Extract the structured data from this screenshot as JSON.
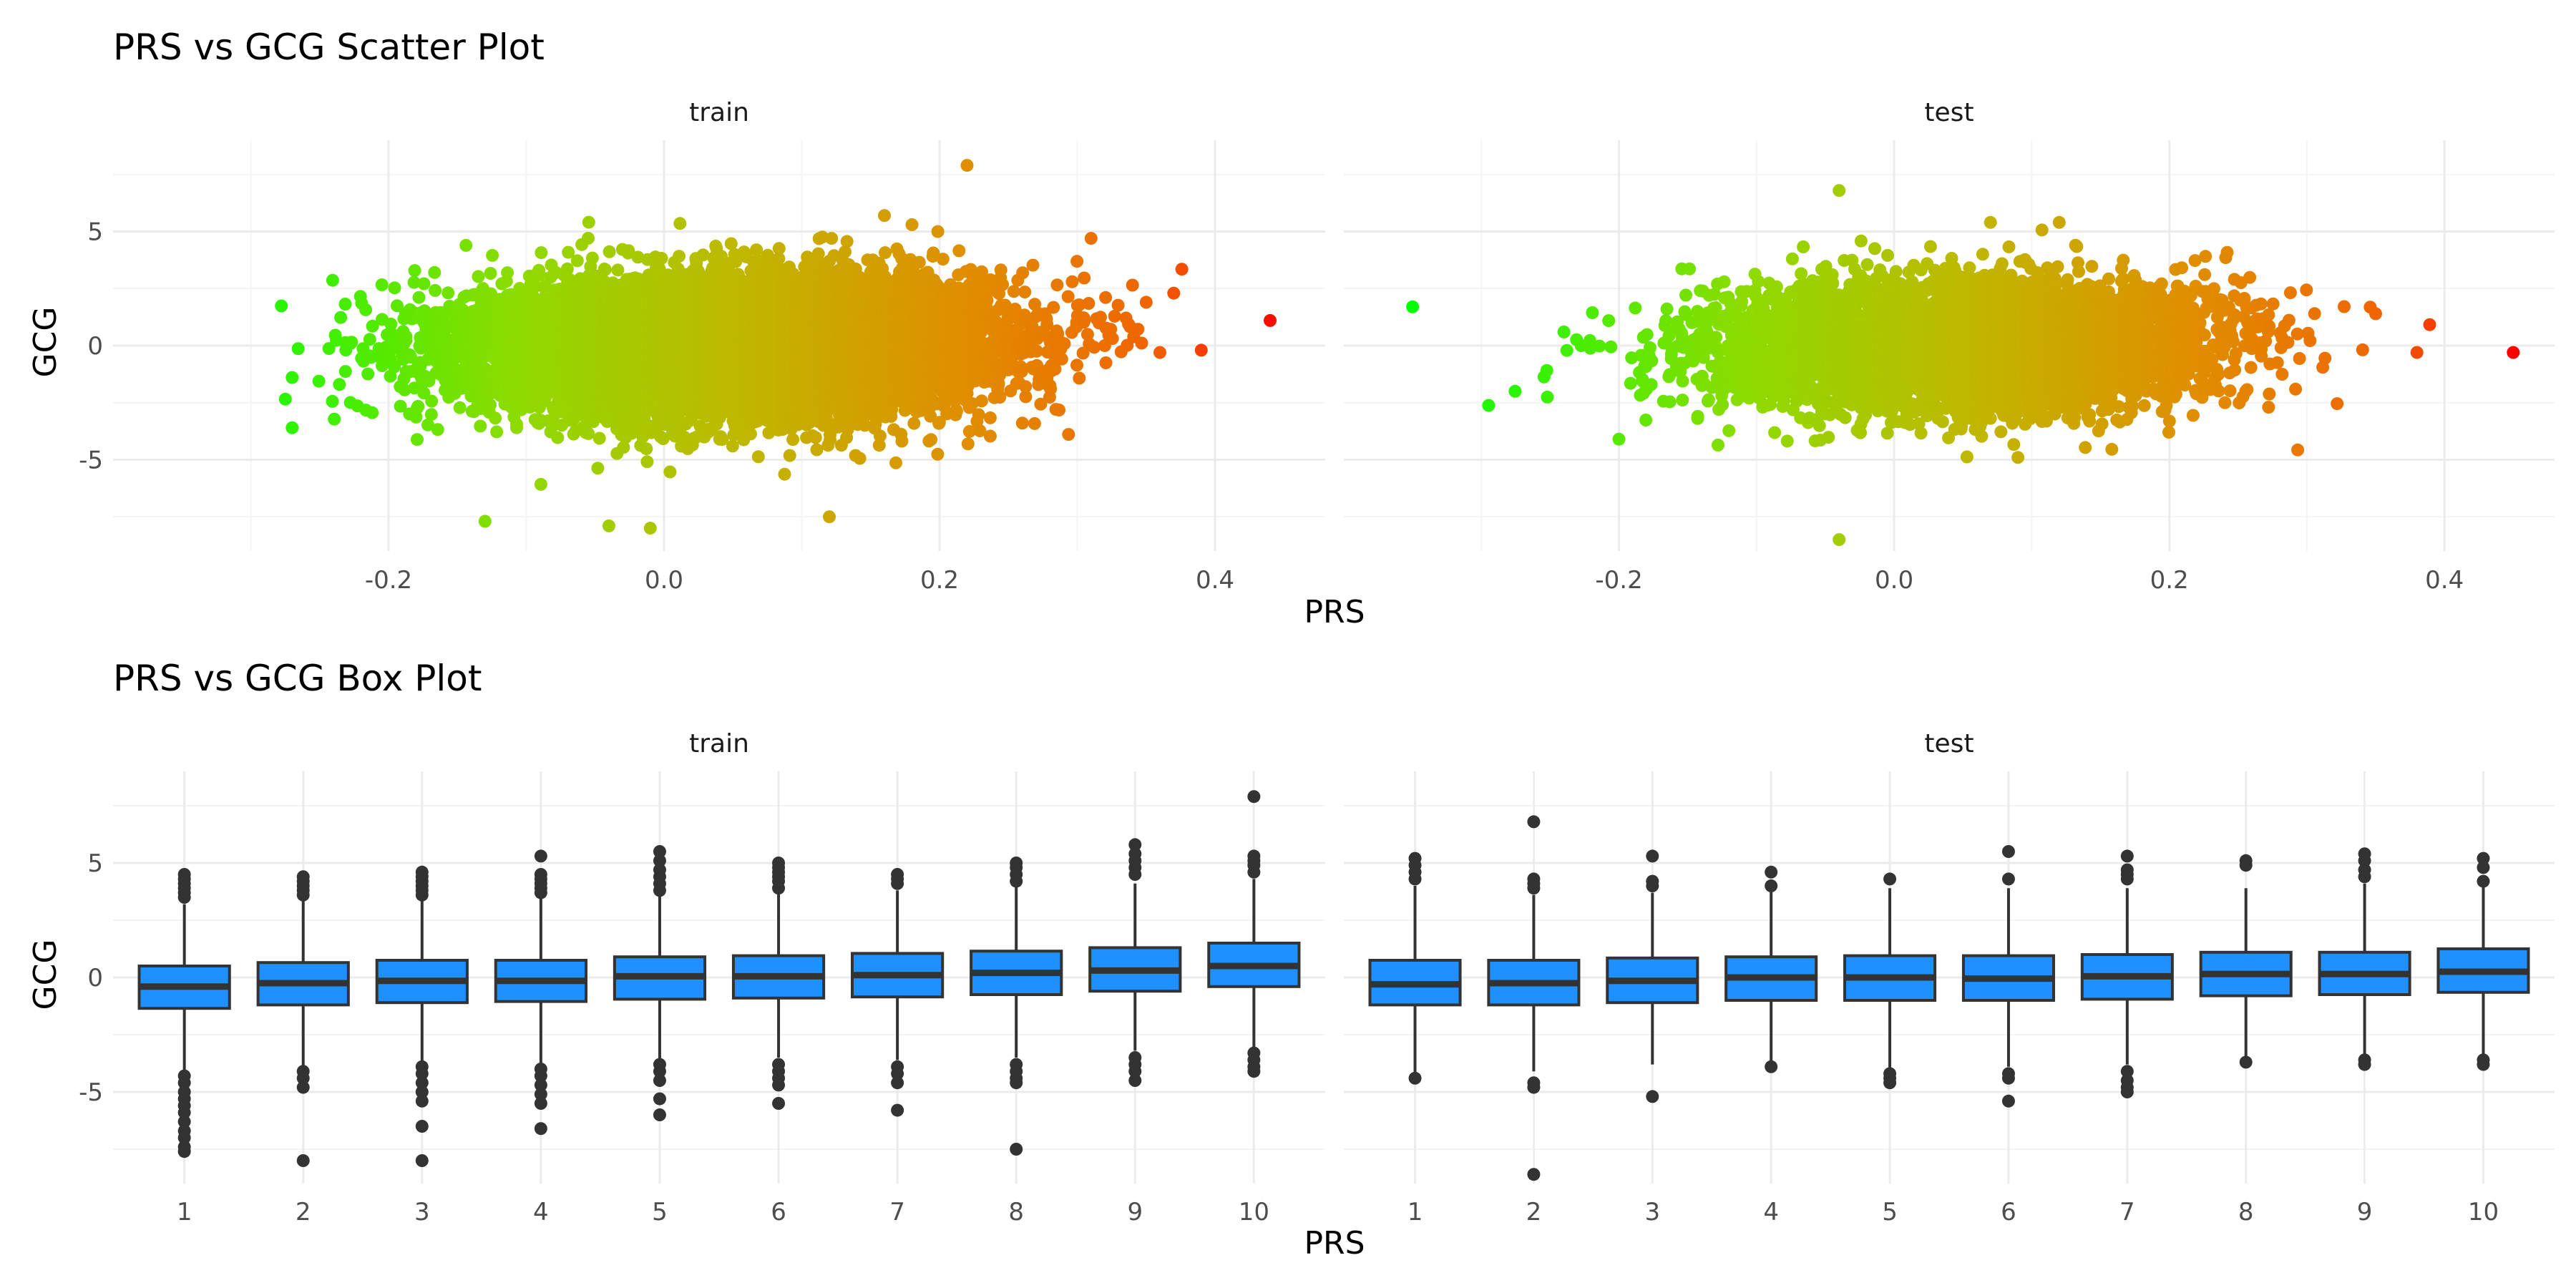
{
  "chart_data": [
    {
      "type": "scatter",
      "title": "PRS vs GCG Scatter Plot",
      "xlabel": "PRS",
      "ylabel": "GCG",
      "panels": [
        "train",
        "test"
      ],
      "xlim": [
        -0.4,
        0.48
      ],
      "ylim": [
        -9,
        9
      ],
      "x_ticks": [
        -0.2,
        0.0,
        0.2,
        0.4
      ],
      "x_tick_labels": [
        "-0.2",
        "0.0",
        "0.2",
        "0.4"
      ],
      "y_ticks": [
        -5,
        0,
        5
      ],
      "y_tick_labels": [
        "-5",
        "0",
        "5"
      ],
      "color_scale": {
        "low": "#00ff00",
        "high": "#ff0000",
        "mapped_to": "PRS"
      },
      "legend": "none",
      "grid": true,
      "series": [
        {
          "panel": "train",
          "n_points_approx": 12000,
          "x_mean": 0.05,
          "x_sd": 0.09,
          "y_mean": 0.0,
          "y_sd": 1.5,
          "slope": 2.5,
          "notable_points": [
            {
              "x": 0.44,
              "y": 1.1
            },
            {
              "x": 0.22,
              "y": 7.9
            },
            {
              "x": -0.27,
              "y": -1.4
            },
            {
              "x": -0.27,
              "y": -3.6
            },
            {
              "x": -0.01,
              "y": -8.0
            },
            {
              "x": -0.04,
              "y": -7.9
            },
            {
              "x": -0.13,
              "y": -7.7
            },
            {
              "x": 0.12,
              "y": -7.5
            },
            {
              "x": 0.39,
              "y": -0.2
            },
            {
              "x": 0.37,
              "y": 2.3
            },
            {
              "x": 0.36,
              "y": -0.3
            },
            {
              "x": 0.35,
              "y": 1.9
            },
            {
              "x": 0.31,
              "y": 4.7
            },
            {
              "x": 0.16,
              "y": 5.7
            },
            {
              "x": 0.18,
              "y": 5.3
            }
          ]
        },
        {
          "panel": "test",
          "n_points_approx": 5000,
          "x_mean": 0.05,
          "x_sd": 0.09,
          "y_mean": 0.0,
          "y_sd": 1.5,
          "slope": 2.5,
          "notable_points": [
            {
              "x": -0.35,
              "y": 1.7
            },
            {
              "x": 0.45,
              "y": -0.3
            },
            {
              "x": 0.38,
              "y": -0.3
            },
            {
              "x": -0.04,
              "y": 6.8
            },
            {
              "x": -0.04,
              "y": -8.5
            },
            {
              "x": -0.2,
              "y": -4.1
            },
            {
              "x": -0.24,
              "y": 0.6
            },
            {
              "x": 0.35,
              "y": 1.4
            },
            {
              "x": 0.12,
              "y": 5.4
            },
            {
              "x": 0.07,
              "y": 5.4
            },
            {
              "x": 0.09,
              "y": -4.9
            }
          ]
        }
      ]
    },
    {
      "type": "box",
      "title": "PRS vs GCG Box Plot",
      "xlabel": "PRS",
      "ylabel": "GCG",
      "panels": [
        "train",
        "test"
      ],
      "categories": [
        "1",
        "2",
        "3",
        "4",
        "5",
        "6",
        "7",
        "8",
        "9",
        "10"
      ],
      "ylim": [
        -9,
        9
      ],
      "y_ticks": [
        -5,
        0,
        5
      ],
      "y_tick_labels": [
        "-5",
        "0",
        "5"
      ],
      "box_fill": "#1e90ff",
      "box_stroke": "#333333",
      "grid": true,
      "series": [
        {
          "panel": "train",
          "boxes": [
            {
              "q1": -1.35,
              "median": -0.4,
              "q3": 0.5,
              "whisker_low": -4.1,
              "whisker_high": 3.2,
              "outliers": [
                4.5,
                4.3,
                4.1,
                3.9,
                3.7,
                3.5,
                -4.3,
                -4.6,
                -5.0,
                -5.3,
                -5.6,
                -5.9,
                -6.3,
                -6.7,
                -7.0,
                -7.4,
                -7.6
              ]
            },
            {
              "q1": -1.2,
              "median": -0.25,
              "q3": 0.65,
              "whisker_low": -3.9,
              "whisker_high": 3.4,
              "outliers": [
                4.4,
                4.2,
                4.0,
                3.8,
                3.6,
                -4.1,
                -4.4,
                -4.8,
                -8.0
              ]
            },
            {
              "q1": -1.1,
              "median": -0.15,
              "q3": 0.75,
              "whisker_low": -3.7,
              "whisker_high": 3.5,
              "outliers": [
                4.6,
                4.4,
                4.2,
                4.0,
                3.8,
                3.6,
                -3.9,
                -4.2,
                -4.6,
                -5.0,
                -5.4,
                -6.5,
                -8.0
              ]
            },
            {
              "q1": -1.05,
              "median": -0.15,
              "q3": 0.75,
              "whisker_low": -3.8,
              "whisker_high": 3.5,
              "outliers": [
                5.3,
                4.5,
                4.3,
                4.1,
                3.9,
                3.7,
                -4.0,
                -4.3,
                -4.7,
                -5.1,
                -5.5,
                -6.6
              ]
            },
            {
              "q1": -0.95,
              "median": 0.05,
              "q3": 0.9,
              "whisker_low": -3.6,
              "whisker_high": 3.6,
              "outliers": [
                5.5,
                5.1,
                4.7,
                4.4,
                4.1,
                3.8,
                -3.8,
                -4.1,
                -4.5,
                -5.3,
                -6.0
              ]
            },
            {
              "q1": -0.9,
              "median": 0.05,
              "q3": 0.95,
              "whisker_low": -3.5,
              "whisker_high": 3.7,
              "outliers": [
                5.0,
                4.8,
                4.6,
                4.4,
                4.2,
                3.9,
                -3.8,
                -4.1,
                -4.4,
                -4.7,
                -5.5
              ]
            },
            {
              "q1": -0.85,
              "median": 0.1,
              "q3": 1.05,
              "whisker_low": -3.6,
              "whisker_high": 3.8,
              "outliers": [
                4.5,
                4.3,
                4.1,
                -3.9,
                -4.2,
                -4.6,
                -5.8
              ]
            },
            {
              "q1": -0.75,
              "median": 0.2,
              "q3": 1.15,
              "whisker_low": -3.5,
              "whisker_high": 4.0,
              "outliers": [
                5.0,
                4.8,
                4.5,
                4.2,
                -3.8,
                -4.1,
                -4.4,
                -4.6,
                -7.5
              ]
            },
            {
              "q1": -0.6,
              "median": 0.3,
              "q3": 1.3,
              "whisker_low": -3.2,
              "whisker_high": 4.1,
              "outliers": [
                5.8,
                5.4,
                5.1,
                4.8,
                4.5,
                -3.5,
                -3.8,
                -4.1,
                -4.5
              ]
            },
            {
              "q1": -0.4,
              "median": 0.5,
              "q3": 1.5,
              "whisker_low": -3.1,
              "whisker_high": 4.3,
              "outliers": [
                7.9,
                5.3,
                5.1,
                4.9,
                4.6,
                -3.3,
                -3.6,
                -3.9,
                -4.1
              ]
            }
          ]
        },
        {
          "panel": "test",
          "boxes": [
            {
              "q1": -1.2,
              "median": -0.3,
              "q3": 0.75,
              "whisker_low": -4.3,
              "whisker_high": 4.0,
              "outliers": [
                5.2,
                4.9,
                4.6,
                4.3,
                -4.4
              ]
            },
            {
              "q1": -1.2,
              "median": -0.25,
              "q3": 0.75,
              "whisker_low": -4.1,
              "whisker_high": 3.6,
              "outliers": [
                6.8,
                4.3,
                4.1,
                3.9,
                -4.6,
                -4.8,
                -8.6
              ]
            },
            {
              "q1": -1.1,
              "median": -0.15,
              "q3": 0.85,
              "whisker_low": -3.8,
              "whisker_high": 3.7,
              "outliers": [
                5.3,
                4.2,
                4.0,
                -5.2
              ]
            },
            {
              "q1": -1.0,
              "median": 0.0,
              "q3": 0.9,
              "whisker_low": -3.9,
              "whisker_high": 3.8,
              "outliers": [
                4.6,
                4.0,
                -3.9
              ]
            },
            {
              "q1": -1.0,
              "median": 0.0,
              "q3": 0.95,
              "whisker_low": -4.0,
              "whisker_high": 3.9,
              "outliers": [
                4.3,
                -4.2,
                -4.4,
                -4.6
              ]
            },
            {
              "q1": -1.0,
              "median": -0.05,
              "q3": 0.95,
              "whisker_low": -3.9,
              "whisker_high": 3.9,
              "outliers": [
                5.5,
                4.3,
                -4.2,
                -4.4,
                -5.4
              ]
            },
            {
              "q1": -0.95,
              "median": 0.05,
              "q3": 1.0,
              "whisker_low": -3.8,
              "whisker_high": 3.9,
              "outliers": [
                5.3,
                4.7,
                4.5,
                4.3,
                -4.1,
                -4.5,
                -4.8,
                -5.0
              ]
            },
            {
              "q1": -0.8,
              "median": 0.15,
              "q3": 1.1,
              "whisker_low": -3.6,
              "whisker_high": 3.9,
              "outliers": [
                5.1,
                4.9,
                -3.7
              ]
            },
            {
              "q1": -0.75,
              "median": 0.15,
              "q3": 1.1,
              "whisker_low": -3.5,
              "whisker_high": 4.1,
              "outliers": [
                5.4,
                5.1,
                4.7,
                4.4,
                -3.6,
                -3.8
              ]
            },
            {
              "q1": -0.65,
              "median": 0.25,
              "q3": 1.25,
              "whisker_low": -3.4,
              "whisker_high": 4.1,
              "outliers": [
                5.2,
                4.8,
                4.2,
                -3.6,
                -3.8
              ]
            }
          ]
        }
      ]
    }
  ]
}
